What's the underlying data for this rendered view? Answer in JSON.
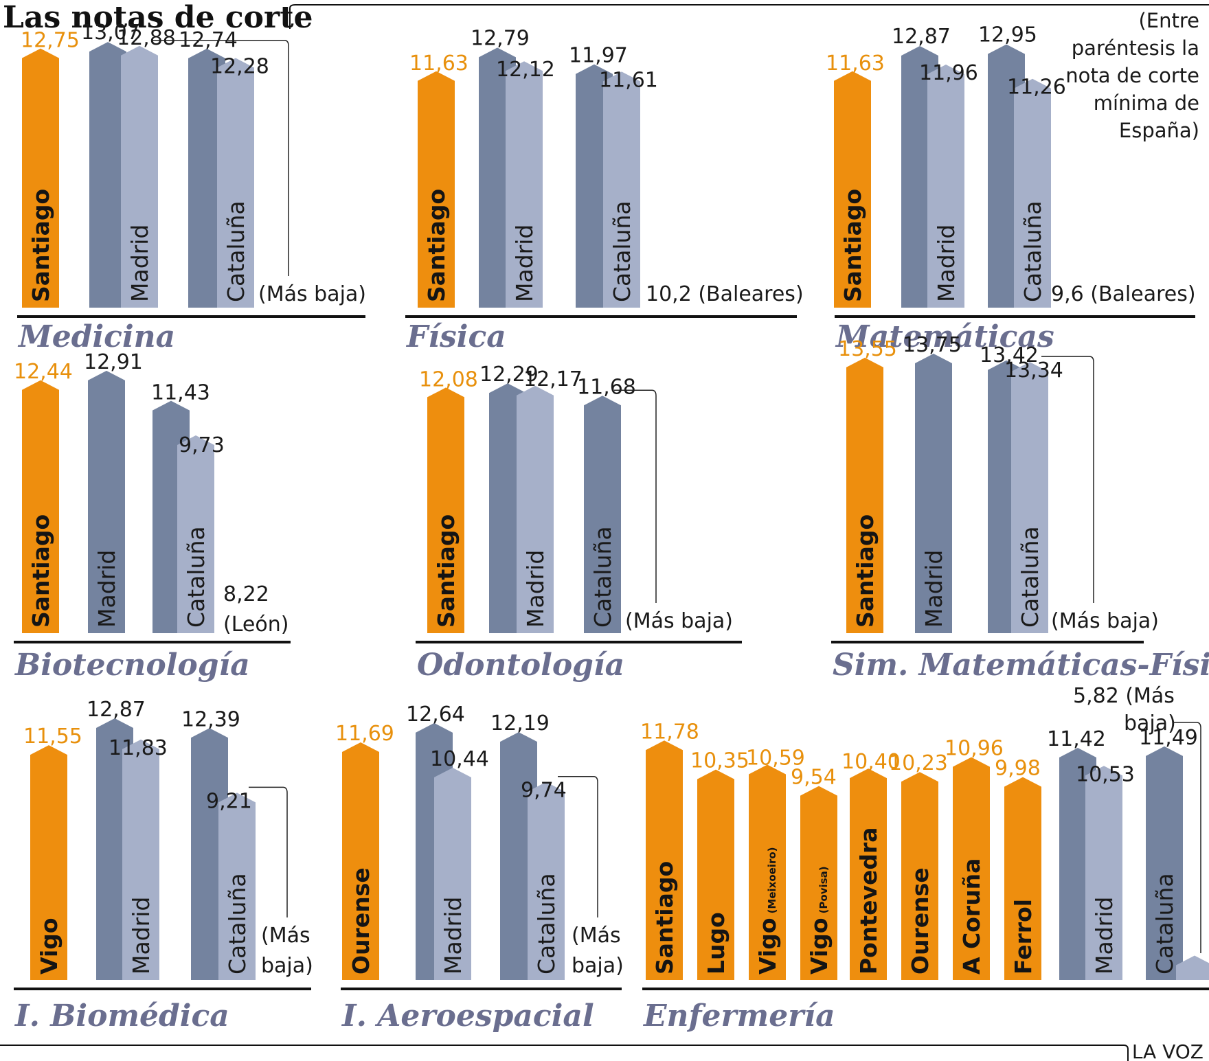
{
  "title": "Las notas de corte",
  "note": [
    "(Entre",
    "paréntesis la",
    "nota de corte",
    "mínima de",
    "España)"
  ],
  "credit": "LA VOZ",
  "colors": {
    "highlight": "#ee8e0e",
    "dark": "#74839f",
    "light": "#a6b0c9",
    "axis": "#111111",
    "title": "#6a6e8f"
  },
  "chart_data": [
    {
      "type": "bar",
      "title": "Medicina",
      "ylim": [
        0,
        14
      ],
      "categories": [
        "Santiago",
        "Madrid",
        "Madrid",
        "Cataluña",
        "Cataluña"
      ],
      "values": [
        12.75,
        13.07,
        12.88,
        12.74,
        12.28
      ],
      "value_labels": [
        "12,75",
        "13,07",
        "12,88",
        "12,74",
        "12,28"
      ],
      "shades": [
        "highlight",
        "dark",
        "light",
        "dark",
        "light"
      ],
      "bar_labels": [
        "Santiago",
        "",
        "Madrid",
        "",
        "Cataluña"
      ],
      "lowest": "(Más baja)"
    },
    {
      "type": "bar",
      "title": "Física",
      "ylim": [
        0,
        14
      ],
      "categories": [
        "Santiago",
        "Madrid",
        "Madrid",
        "Cataluña",
        "Cataluña"
      ],
      "values": [
        11.63,
        12.79,
        12.12,
        11.97,
        11.61
      ],
      "value_labels": [
        "11,63",
        "12,79",
        "12,12",
        "11,97",
        "11,61"
      ],
      "shades": [
        "highlight",
        "dark",
        "light",
        "dark",
        "light"
      ],
      "bar_labels": [
        "Santiago",
        "",
        "Madrid",
        "",
        "Cataluña"
      ],
      "lowest": "10,2 (Baleares)"
    },
    {
      "type": "bar",
      "title": "Matemáticas",
      "ylim": [
        0,
        14
      ],
      "categories": [
        "Santiago",
        "Madrid",
        "Madrid",
        "Cataluña",
        "Cataluña"
      ],
      "values": [
        11.63,
        12.87,
        11.96,
        12.95,
        11.26
      ],
      "value_labels": [
        "11,63",
        "12,87",
        "11,96",
        "12,95",
        "11,26"
      ],
      "shades": [
        "highlight",
        "dark",
        "light",
        "dark",
        "light"
      ],
      "bar_labels": [
        "Santiago",
        "",
        "Madrid",
        "",
        "Cataluña"
      ],
      "lowest": "9,6 (Baleares)"
    },
    {
      "type": "bar",
      "title": "Biotecnología",
      "ylim": [
        0,
        14
      ],
      "categories": [
        "Santiago",
        "Madrid",
        "Cataluña",
        "Cataluña"
      ],
      "values": [
        12.44,
        12.91,
        11.43,
        9.73
      ],
      "value_labels": [
        "12,44",
        "12,91",
        "11,43",
        "9,73"
      ],
      "shades": [
        "highlight",
        "dark",
        "dark",
        "light"
      ],
      "bar_labels": [
        "Santiago",
        "Madrid",
        "",
        "Cataluña"
      ],
      "lowest": "8,22 (León)"
    },
    {
      "type": "bar",
      "title": "Odontología",
      "ylim": [
        0,
        14
      ],
      "categories": [
        "Santiago",
        "Madrid",
        "Madrid",
        "Cataluña"
      ],
      "values": [
        12.08,
        12.29,
        12.17,
        11.68
      ],
      "value_labels": [
        "12,08",
        "12,29",
        "12,17",
        "11,68"
      ],
      "shades": [
        "highlight",
        "dark",
        "light",
        "dark"
      ],
      "bar_labels": [
        "Santiago",
        "",
        "Madrid",
        "Cataluña"
      ],
      "lowest": "(Más baja)"
    },
    {
      "type": "bar",
      "title": "Sim. Matemáticas-Física",
      "ylim": [
        0,
        14
      ],
      "categories": [
        "Santiago",
        "Madrid",
        "Cataluña",
        "Cataluña"
      ],
      "values": [
        13.55,
        13.75,
        13.42,
        13.34
      ],
      "value_labels": [
        "13,55",
        "13,75",
        "13,42",
        "13,34"
      ],
      "shades": [
        "highlight",
        "dark",
        "dark",
        "light"
      ],
      "bar_labels": [
        "Santiago",
        "Madrid",
        "",
        "Cataluña"
      ],
      "lowest": "(Más baja)"
    },
    {
      "type": "bar",
      "title": "I. Biomédica",
      "ylim": [
        0,
        14
      ],
      "categories": [
        "Vigo",
        "Madrid",
        "Madrid",
        "Cataluña",
        "Cataluña"
      ],
      "values": [
        11.55,
        12.87,
        11.83,
        12.39,
        9.21
      ],
      "value_labels": [
        "11,55",
        "12,87",
        "11,83",
        "12,39",
        "9,21"
      ],
      "shades": [
        "highlight",
        "dark",
        "light",
        "dark",
        "light"
      ],
      "bar_labels": [
        "Vigo",
        "",
        "Madrid",
        "",
        "Cataluña"
      ],
      "lowest": "(Más baja)"
    },
    {
      "type": "bar",
      "title": "I. Aeroespacial",
      "ylim": [
        0,
        14
      ],
      "categories": [
        "Ourense",
        "Madrid",
        "Madrid",
        "Cataluña",
        "Cataluña"
      ],
      "values": [
        11.69,
        12.64,
        10.44,
        12.19,
        9.74
      ],
      "value_labels": [
        "11,69",
        "12,64",
        "10,44",
        "12,19",
        "9,74"
      ],
      "shades": [
        "highlight",
        "dark",
        "light",
        "dark",
        "light"
      ],
      "bar_labels": [
        "Ourense",
        "",
        "Madrid",
        "",
        "Cataluña"
      ],
      "lowest": "(Más baja)"
    },
    {
      "type": "bar",
      "title": "Enfermería",
      "ylim": [
        0,
        14
      ],
      "categories": [
        "Santiago",
        "Lugo",
        "Vigo (Meixoeiro)",
        "Vigo (Povisa)",
        "Pontevedra",
        "Ourense",
        "A Coruña",
        "Ferrol",
        "Madrid",
        "Madrid",
        "Cataluña",
        "Cataluña"
      ],
      "values": [
        11.78,
        10.35,
        10.59,
        9.54,
        10.4,
        10.23,
        10.96,
        9.98,
        11.42,
        10.53,
        11.49,
        5.82
      ],
      "value_labels": [
        "11,78",
        "10,35",
        "10,59",
        "9,54",
        "10,40",
        "10,23",
        "10,96",
        "9,98",
        "11,42",
        "10,53",
        "11,49",
        "5,82 (Más baja)"
      ],
      "shades": [
        "highlight",
        "highlight",
        "highlight",
        "highlight",
        "highlight",
        "highlight",
        "highlight",
        "highlight",
        "dark",
        "light",
        "dark",
        "light"
      ],
      "bar_labels": [
        "Santiago",
        "Lugo",
        "Vigo",
        "Vigo",
        "Pontevedra",
        "Ourense",
        "A Coruña",
        "Ferrol",
        "",
        "Madrid",
        "Cataluña",
        ""
      ],
      "bar_sublabels": [
        "",
        "",
        "(Meixoeiro)",
        "(Povisa)",
        "",
        "",
        "",
        "",
        "",
        "",
        "",
        ""
      ],
      "lowest": ""
    }
  ]
}
